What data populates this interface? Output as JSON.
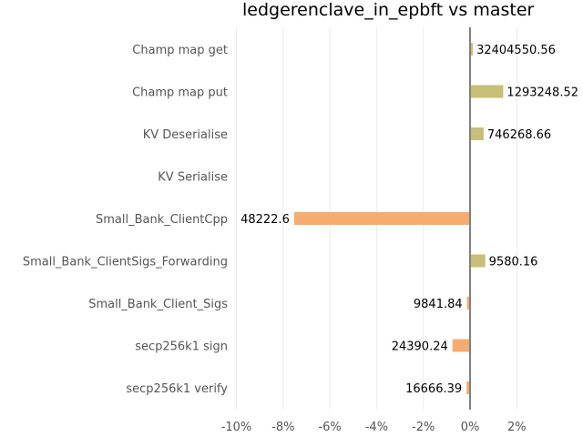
{
  "chart_data": {
    "type": "bar",
    "orientation": "horizontal",
    "title": "ledgerenclave_in_epbft vs master",
    "xlabel": "",
    "ylabel": "",
    "xlim": [
      -0.12,
      0.025
    ],
    "x_ticks": [
      -0.1,
      -0.08,
      -0.06,
      -0.04,
      -0.02,
      0.0,
      0.02
    ],
    "x_tick_labels": [
      "-10%",
      "-8%",
      "-6%",
      "-4%",
      "-2%",
      "0%",
      "2%"
    ],
    "grid": true,
    "legend": "none",
    "categories": [
      "Champ map get",
      "Champ map put",
      "KV Deserialise",
      "KV Serialise",
      "Small_Bank_ClientCpp",
      "Small_Bank_ClientSigs_Forwarding",
      "Small_Bank_Client_Sigs",
      "secp256k1 sign",
      "secp256k1 verify"
    ],
    "values": [
      0.0012,
      0.0142,
      0.0058,
      0.0,
      -0.0753,
      0.0065,
      -0.0013,
      -0.0075,
      -0.0015
    ],
    "data_labels": [
      "32404550.56",
      "1293248.52",
      "746268.66",
      "",
      "48222.6",
      "9580.16",
      "9841.84",
      "24390.24",
      "16666.39"
    ],
    "colors": {
      "positive": "#c5bf78",
      "negative": "#f4ac70",
      "zero_line": "#808080",
      "grid": "#ebebeb",
      "category_text": "#555555",
      "label_text": "#000000"
    }
  }
}
